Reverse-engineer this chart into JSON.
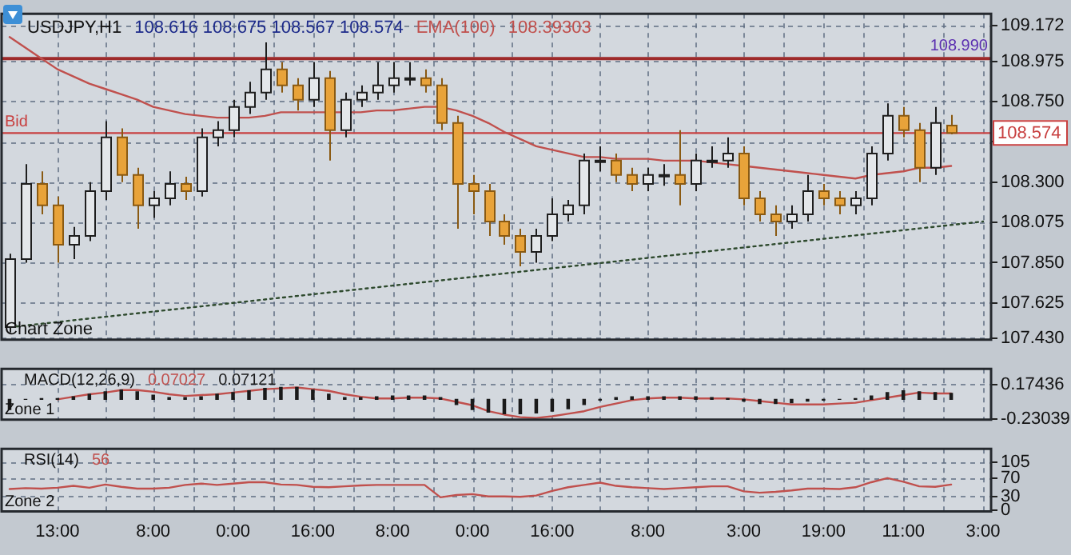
{
  "chart_data": [
    {
      "type": "candlestick",
      "title": "USDJPY,H1",
      "subtitle": "108.616 108.675 108.567 108.574",
      "categories": [
        null,
        null,
        null,
        null,
        null,
        null,
        null,
        null,
        null,
        null,
        null,
        null,
        null,
        null,
        null,
        null,
        null,
        null,
        null,
        null,
        null,
        null,
        null,
        null,
        null,
        null,
        null,
        null,
        null,
        null,
        null,
        null,
        null,
        null,
        null,
        null,
        null,
        null,
        null,
        null,
        null,
        null,
        null,
        null,
        null,
        null,
        null,
        null,
        null,
        null,
        null,
        null,
        null,
        null,
        null,
        null,
        null,
        null,
        null,
        null,
        null,
        null
      ],
      "ohlc": [
        [
          107.49,
          107.9,
          107.46,
          107.87
        ],
        [
          107.87,
          108.4,
          107.85,
          108.29
        ],
        [
          108.29,
          108.36,
          108.12,
          108.17
        ],
        [
          108.17,
          108.22,
          107.85,
          107.95
        ],
        [
          107.95,
          108.05,
          107.87,
          108.0
        ],
        [
          108.0,
          108.3,
          107.97,
          108.25
        ],
        [
          108.25,
          108.64,
          108.2,
          108.55
        ],
        [
          108.55,
          108.6,
          108.3,
          108.34
        ],
        [
          108.34,
          108.38,
          108.04,
          108.17
        ],
        [
          108.17,
          108.25,
          108.1,
          108.21
        ],
        [
          108.21,
          108.36,
          108.17,
          108.29
        ],
        [
          108.29,
          108.33,
          108.2,
          108.25
        ],
        [
          108.25,
          108.6,
          108.22,
          108.55
        ],
        [
          108.55,
          108.64,
          108.5,
          108.59
        ],
        [
          108.59,
          108.76,
          108.55,
          108.72
        ],
        [
          108.72,
          108.86,
          108.68,
          108.8
        ],
        [
          108.8,
          109.08,
          108.76,
          108.93
        ],
        [
          108.93,
          108.97,
          108.8,
          108.84
        ],
        [
          108.84,
          108.88,
          108.7,
          108.76
        ],
        [
          108.76,
          108.97,
          108.72,
          108.88
        ],
        [
          108.88,
          108.92,
          108.42,
          108.59
        ],
        [
          108.59,
          108.8,
          108.55,
          108.76
        ],
        [
          108.76,
          108.84,
          108.72,
          108.8
        ],
        [
          108.8,
          108.97,
          108.76,
          108.84
        ],
        [
          108.84,
          108.97,
          108.8,
          108.88
        ],
        [
          108.88,
          108.97,
          108.84,
          108.88
        ],
        [
          108.88,
          108.93,
          108.8,
          108.84
        ],
        [
          108.84,
          108.88,
          108.59,
          108.63
        ],
        [
          108.63,
          108.67,
          108.04,
          108.29
        ],
        [
          108.29,
          108.34,
          108.12,
          108.25
        ],
        [
          108.25,
          108.29,
          108.0,
          108.08
        ],
        [
          108.08,
          108.12,
          107.95,
          108.0
        ],
        [
          108.0,
          108.04,
          107.83,
          107.91
        ],
        [
          107.91,
          108.04,
          107.85,
          108.0
        ],
        [
          108.0,
          108.21,
          107.97,
          108.12
        ],
        [
          108.12,
          108.2,
          108.08,
          108.17
        ],
        [
          108.17,
          108.46,
          108.12,
          108.42
        ],
        [
          108.42,
          108.5,
          108.36,
          108.42
        ],
        [
          108.42,
          108.46,
          108.3,
          108.34
        ],
        [
          108.34,
          108.38,
          108.25,
          108.29
        ],
        [
          108.29,
          108.38,
          108.25,
          108.34
        ],
        [
          108.34,
          108.4,
          108.28,
          108.34
        ],
        [
          108.34,
          108.59,
          108.17,
          108.29
        ],
        [
          108.29,
          108.46,
          108.25,
          108.42
        ],
        [
          108.42,
          108.5,
          108.38,
          108.42
        ],
        [
          108.42,
          108.55,
          108.38,
          108.46
        ],
        [
          108.46,
          108.5,
          108.17,
          108.21
        ],
        [
          108.21,
          108.25,
          108.08,
          108.12
        ],
        [
          108.12,
          108.17,
          108.0,
          108.08
        ],
        [
          108.08,
          108.17,
          108.04,
          108.12
        ],
        [
          108.12,
          108.34,
          108.08,
          108.25
        ],
        [
          108.25,
          108.29,
          108.17,
          108.21
        ],
        [
          108.21,
          108.25,
          108.12,
          108.17
        ],
        [
          108.17,
          108.25,
          108.12,
          108.21
        ],
        [
          108.21,
          108.5,
          108.17,
          108.46
        ],
        [
          108.46,
          108.74,
          108.42,
          108.67
        ],
        [
          108.67,
          108.72,
          108.55,
          108.59
        ],
        [
          108.59,
          108.63,
          108.3,
          108.38
        ],
        [
          108.38,
          108.72,
          108.34,
          108.63
        ],
        [
          108.616,
          108.675,
          108.567,
          108.574
        ],
        null,
        null
      ],
      "series": [
        {
          "type": "line",
          "color": "#2e4a2e",
          "line_style": "dotted",
          "values": [
            107.49,
            107.4997,
            107.5093,
            107.519,
            107.5287,
            107.5384,
            107.548,
            107.5577,
            107.5674,
            107.577,
            107.5867,
            107.5964,
            107.6061,
            107.6157,
            107.6254,
            107.6351,
            107.6448,
            107.6544,
            107.6641,
            107.6738,
            107.6834,
            107.6931,
            107.7028,
            107.7125,
            107.7221,
            107.7318,
            107.7415,
            107.7511,
            107.7608,
            107.7705,
            107.7802,
            107.7898,
            107.7995,
            107.8092,
            107.8189,
            107.8285,
            107.8382,
            107.8479,
            107.8575,
            107.8672,
            107.8769,
            107.8866,
            107.8962,
            107.9059,
            107.9156,
            107.9252,
            107.9349,
            107.9446,
            107.9543,
            107.9639,
            107.9736,
            107.9833,
            107.993,
            108.0026,
            108.0123,
            108.022,
            108.0316,
            108.0413,
            108.051,
            108.0607,
            108.0703,
            108.08
          ]
        },
        {
          "type": "line",
          "name": "EMA(100)",
          "color": "#c0504d",
          "values": [
            109.11,
            109.05,
            108.99,
            108.93,
            108.89,
            108.85,
            108.82,
            108.79,
            108.76,
            108.72,
            108.7,
            108.68,
            108.67,
            108.66,
            108.66,
            108.66,
            108.67,
            108.69,
            108.69,
            108.69,
            108.69,
            108.69,
            108.69,
            108.7,
            108.7,
            108.71,
            108.72,
            108.72,
            108.7,
            108.67,
            108.63,
            108.58,
            108.54,
            108.5,
            108.48,
            108.46,
            108.44,
            108.44,
            108.43,
            108.43,
            108.43,
            108.42,
            108.42,
            108.42,
            108.41,
            108.4,
            108.39,
            108.38,
            108.37,
            108.36,
            108.35,
            108.34,
            108.33,
            108.32,
            108.34,
            108.35,
            108.36,
            108.38,
            108.38,
            108.39,
            null,
            null
          ]
        }
      ],
      "ylim": [
        107.42,
        109.24
      ],
      "yticks": [
        109.172,
        {
          "value": 108.975,
          "label": "108.975"
        },
        {
          "value": 108.75,
          "label": "108.750"
        },
        {
          "value": 108.525,
          "label": null
        },
        {
          "value": 108.3,
          "label": "108.300"
        },
        108.075,
        {
          "value": 107.85,
          "label": "107.850"
        },
        107.625,
        {
          "value": 107.43,
          "label": "107.430"
        }
      ],
      "tick_labels": "y",
      "grid": true,
      "ref_lines": [
        {
          "axis": "y",
          "value": 108.99,
          "label": "108.990",
          "color": "#9e2a2a"
        },
        {
          "axis": "y",
          "value": 108.574,
          "label": "108.574",
          "color": "#c84040"
        }
      ],
      "annotations": [
        "108.39303",
        {
          "text": "Bid",
          "y": 108.574
        },
        "Chart Zone"
      ]
    },
    {
      "type": "bar",
      "title": "MACD(12,26,9)",
      "categories": [
        null,
        null,
        null,
        null,
        null,
        null,
        null,
        null,
        null,
        null,
        null,
        null,
        null,
        null,
        null,
        null,
        null,
        null,
        null,
        null,
        null,
        null,
        null,
        null,
        null,
        null,
        null,
        null,
        null,
        null,
        null,
        null,
        null,
        null,
        null,
        null,
        null,
        null,
        null,
        null,
        null,
        null,
        null,
        null,
        null,
        null,
        null,
        null,
        null,
        null,
        null,
        null,
        null,
        null,
        null,
        null,
        null,
        null,
        null,
        null,
        null,
        null
      ],
      "series": [
        {
          "type": "bar",
          "color": "#1a1a1a",
          "values": [
            -0.12,
            0.0,
            0.01,
            0.01,
            0.03,
            0.06,
            0.09,
            0.11,
            0.09,
            0.05,
            0.02,
            0.02,
            0.03,
            0.06,
            0.08,
            0.1,
            0.13,
            0.14,
            0.14,
            0.11,
            0.06,
            0.02,
            0.02,
            0.03,
            0.04,
            0.04,
            0.04,
            0.02,
            -0.06,
            -0.12,
            -0.15,
            -0.17,
            -0.17,
            -0.16,
            -0.14,
            -0.11,
            -0.06,
            -0.01,
            0.02,
            0.03,
            0.03,
            0.03,
            0.03,
            0.03,
            0.02,
            0.01,
            -0.02,
            -0.05,
            -0.05,
            -0.04,
            -0.02,
            -0.01,
            0.0,
            0.01,
            0.04,
            0.08,
            0.1,
            0.09,
            0.08,
            0.07,
            null,
            null
          ]
        },
        {
          "type": "line",
          "color": "#c0504d",
          "values": [
            null,
            null,
            null,
            0.0,
            0.03,
            0.06,
            0.08,
            0.11,
            0.11,
            0.09,
            0.06,
            0.04,
            0.05,
            0.06,
            0.08,
            0.1,
            0.12,
            0.13,
            0.14,
            0.12,
            0.1,
            0.06,
            0.03,
            0.01,
            0.01,
            0.02,
            0.02,
            0.01,
            -0.03,
            -0.07,
            -0.14,
            -0.18,
            -0.21,
            -0.22,
            -0.2,
            -0.17,
            -0.14,
            -0.09,
            -0.05,
            -0.01,
            0.01,
            0.02,
            0.02,
            0.01,
            0.01,
            0.01,
            0.0,
            -0.02,
            -0.04,
            -0.06,
            -0.06,
            -0.06,
            -0.05,
            -0.04,
            -0.01,
            0.02,
            0.05,
            0.08,
            0.07,
            0.07,
            null,
            null
          ]
        }
      ],
      "ylim": [
        -0.24,
        0.36
      ],
      "yticks": [
        0.17436,
        -0.23039
      ],
      "tick_labels": "y",
      "grid": true,
      "annotations": [
        "0.07027",
        "0.07121",
        "Zone 1"
      ]
    },
    {
      "type": "line",
      "title": "RSI(14)",
      "color": "#c0504d",
      "categories": [
        null,
        null,
        null,
        "13:00",
        null,
        null,
        null,
        null,
        null,
        "8:00",
        null,
        null,
        null,
        null,
        "0:00",
        null,
        null,
        null,
        null,
        "16:00",
        null,
        null,
        null,
        null,
        "8:00",
        null,
        null,
        null,
        null,
        "0:00",
        null,
        null,
        null,
        null,
        "16:00",
        null,
        null,
        null,
        null,
        null,
        "8:00",
        null,
        null,
        null,
        null,
        null,
        "3:00",
        null,
        null,
        null,
        null,
        "19:00",
        null,
        null,
        null,
        null,
        "11:00",
        null,
        null,
        null,
        null,
        "3:00"
      ],
      "values": [
        46,
        48,
        47,
        49,
        53,
        49,
        56,
        51,
        47,
        47,
        49,
        55,
        58,
        55,
        58,
        61,
        61,
        56,
        55,
        51,
        50,
        52,
        54,
        55,
        55,
        55,
        55,
        28,
        33,
        35,
        30,
        30,
        29,
        32,
        42,
        50,
        55,
        60,
        53,
        50,
        48,
        46,
        48,
        50,
        52,
        52,
        41,
        38,
        40,
        43,
        47,
        47,
        46,
        50,
        61,
        70,
        62,
        52,
        51,
        56,
        null,
        null
      ],
      "ylim": [
        -3,
        134
      ],
      "yticks": [
        105,
        70,
        30,
        0
      ],
      "grid": true,
      "annotations": [
        "56",
        "Zone 2"
      ]
    }
  ]
}
